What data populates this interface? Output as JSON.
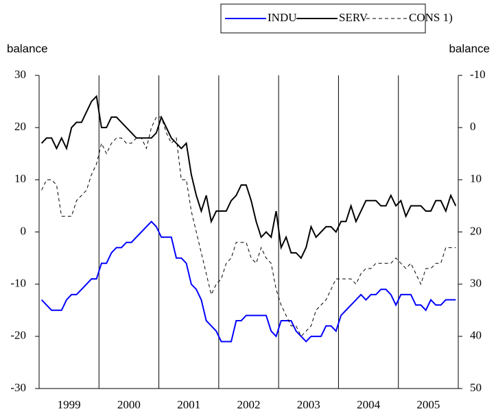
{
  "chart_data": {
    "type": "line",
    "y_label": "balance",
    "y2_label": "balance",
    "categories": [
      null,
      null,
      null,
      null,
      null,
      null,
      "1999",
      null,
      null,
      null,
      null,
      null,
      null,
      null,
      null,
      null,
      null,
      null,
      "2000",
      null,
      null,
      null,
      null,
      null,
      null,
      null,
      null,
      null,
      null,
      null,
      "2001",
      null,
      null,
      null,
      null,
      null,
      null,
      null,
      null,
      null,
      null,
      null,
      "2002",
      null,
      null,
      null,
      null,
      null,
      null,
      null,
      null,
      null,
      null,
      null,
      "2003",
      null,
      null,
      null,
      null,
      null,
      null,
      null,
      null,
      null,
      null,
      null,
      "2004",
      null,
      null,
      null,
      null,
      null,
      null,
      null,
      null,
      null,
      null,
      null,
      "2005",
      null,
      null,
      null,
      null,
      null
    ],
    "ylim": [
      -30,
      30
    ],
    "yticks": [
      -30,
      -20,
      -10,
      0,
      10,
      20,
      30
    ],
    "y2lim": [
      50,
      -10
    ],
    "y2ticks": [
      -10,
      0,
      10,
      20,
      30,
      40,
      50
    ],
    "series": [
      {
        "name": "INDU",
        "color": "#0000ff",
        "dash": false,
        "axis": "y",
        "values": [
          -13,
          -14,
          -15,
          -15,
          -15,
          -13,
          -12,
          -12,
          -11,
          -10,
          -9,
          -9,
          -6,
          -6,
          -4,
          -3,
          -3,
          -2,
          -2,
          -1,
          0,
          1,
          2,
          1,
          -1,
          -1,
          -1,
          -5,
          -5,
          -6,
          -10,
          -11,
          -13,
          -17,
          -18,
          -19,
          -21,
          -21,
          -21,
          -17,
          -17,
          -16,
          -16,
          -16,
          -16,
          -16,
          -19,
          -20,
          -17,
          -17,
          -17,
          -19,
          -20,
          -21,
          -20,
          -20,
          -20,
          -18,
          -18,
          -19,
          -16,
          -15,
          -14,
          -13,
          -12,
          -13,
          -12,
          -12,
          -11,
          -11,
          -12,
          -14,
          -12,
          -12,
          -12,
          -14,
          -14,
          -15,
          -13,
          -14,
          -14,
          -13,
          -13,
          -13
        ]
      },
      {
        "name": "SERV",
        "color": "#000000",
        "dash": false,
        "axis": "y",
        "values": [
          17,
          18,
          18,
          16,
          18,
          16,
          20,
          21,
          21,
          23,
          25,
          26,
          20,
          20,
          22,
          22,
          21,
          20,
          19,
          18,
          18,
          18,
          18,
          19,
          22,
          20,
          18,
          17,
          16,
          17,
          11,
          7,
          4,
          7,
          2,
          4,
          4,
          4,
          6,
          7,
          9,
          9,
          6,
          2,
          -1,
          0,
          -1,
          4,
          -3,
          -1,
          -4,
          -4,
          -5,
          -3,
          1,
          -1,
          0,
          1,
          1,
          0,
          2,
          2,
          5,
          2,
          4,
          6,
          6,
          6,
          5,
          5,
          7,
          5,
          6,
          3,
          5,
          5,
          5,
          4,
          4,
          6,
          6,
          4,
          7,
          5
        ]
      },
      {
        "name": "CONS 1)",
        "color": "#000000",
        "dash": true,
        "axis": "y2",
        "values": [
          12,
          10,
          10,
          11,
          17,
          17,
          17,
          14,
          13,
          12,
          9,
          7,
          3,
          5,
          3,
          2,
          2,
          3,
          3,
          2,
          2,
          4,
          0,
          -2,
          -2,
          1,
          3,
          2,
          10,
          10,
          16,
          20,
          24,
          28,
          32,
          30,
          29,
          26,
          25,
          22,
          22,
          22,
          25,
          26,
          23,
          25,
          26,
          31,
          34,
          36,
          38,
          38,
          40,
          39,
          38,
          35,
          34,
          33,
          31,
          29,
          29,
          29,
          29,
          30,
          28,
          27,
          27,
          26,
          26,
          26,
          26,
          25,
          26,
          27,
          26,
          28,
          30,
          27,
          27,
          26,
          26,
          23,
          23,
          23
        ]
      }
    ]
  }
}
